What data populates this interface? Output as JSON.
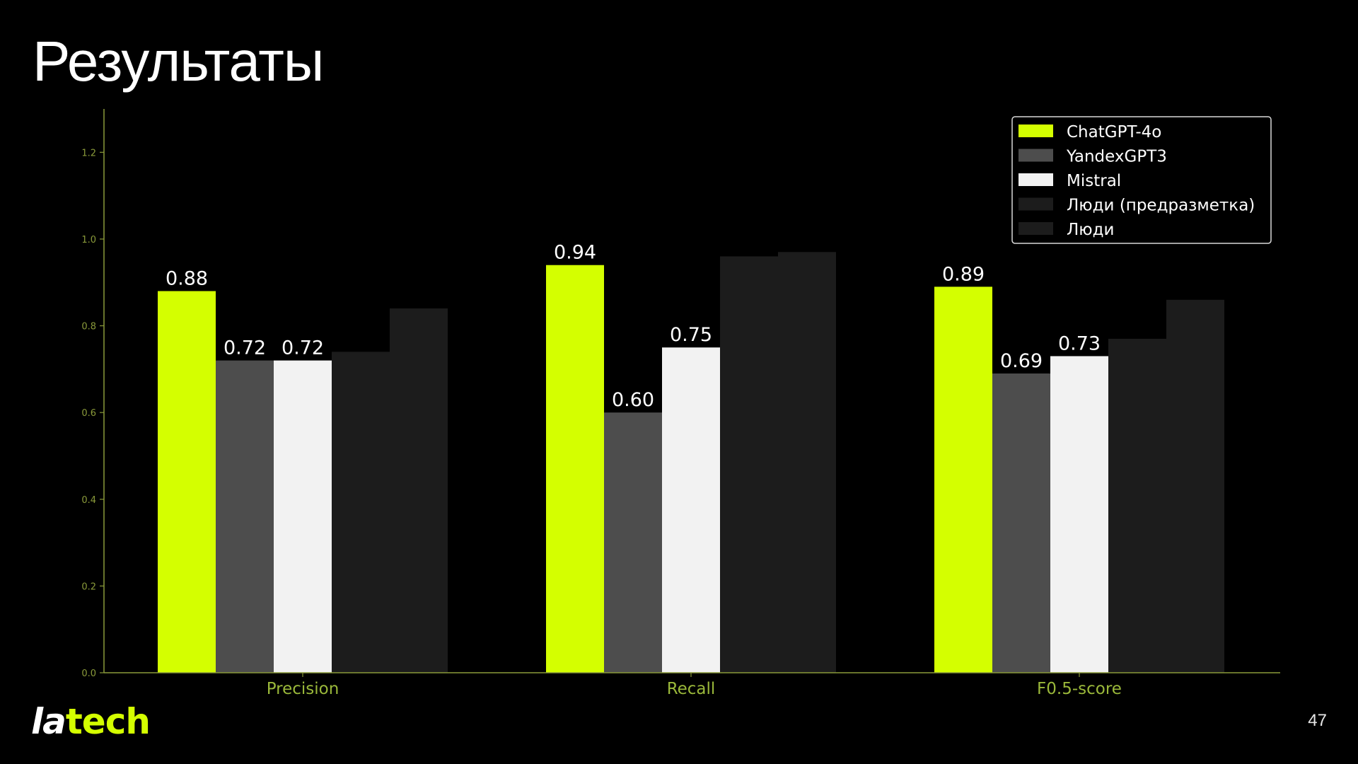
{
  "slide": {
    "title": "Результаты",
    "page_number": "47",
    "logo": {
      "left": "la",
      "right": "tech"
    }
  },
  "colors": {
    "accent": "#d4ff00",
    "axis": "#8a9a3a",
    "tick_label": "#8a9a3a",
    "category_label": "#9ab83a",
    "background": "#000000"
  },
  "chart_data": {
    "type": "bar",
    "categories": [
      "Precision",
      "Recall",
      "F0.5-score"
    ],
    "series": [
      {
        "name": "ChatGPT-4o",
        "color": "#d4ff00",
        "values": [
          0.88,
          0.94,
          0.89
        ],
        "labels": [
          "0.88",
          "0.94",
          "0.89"
        ]
      },
      {
        "name": "YandexGPT3",
        "color": "#4d4d4d",
        "values": [
          0.72,
          0.6,
          0.69
        ],
        "labels": [
          "0.72",
          "0.60",
          "0.69"
        ]
      },
      {
        "name": "Mistral",
        "color": "#f2f2f2",
        "values": [
          0.72,
          0.75,
          0.73
        ],
        "labels": [
          "0.72",
          "0.75",
          "0.73"
        ]
      },
      {
        "name": "Люди (предразметка)",
        "color": "#1c1c1c",
        "values": [
          0.74,
          0.96,
          0.77
        ],
        "labels": null
      },
      {
        "name": "Люди",
        "color": "#1c1c1c",
        "values": [
          0.84,
          0.97,
          0.86
        ],
        "labels": null
      }
    ],
    "title": "",
    "xlabel": "",
    "ylabel": "",
    "ylim": [
      0,
      1.3
    ],
    "yticks": [
      0.0,
      0.2,
      0.4,
      0.6,
      0.8,
      1.0,
      1.2
    ],
    "ytick_labels": [
      "0.0",
      "0.2",
      "0.4",
      "0.6",
      "0.8",
      "1.0",
      "1.2"
    ],
    "grid": false,
    "legend": "top-right"
  }
}
